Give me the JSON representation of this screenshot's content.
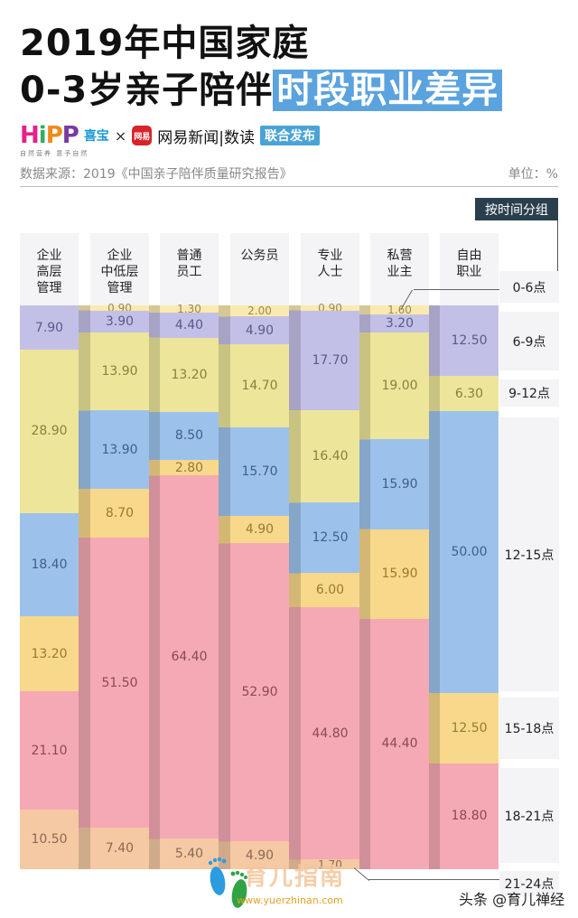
{
  "header": {
    "title_line1": "2019年中国家庭",
    "title_line2_prefix": "0-3岁亲子陪伴",
    "title_line2_highlight": "时段职业差异",
    "logo_hipp": [
      "H",
      "i",
      "P",
      "P"
    ],
    "logo_hipp_cn": "喜宝",
    "logo_hipp_slogan": "自然营养  意予自然",
    "times_symbol": "×",
    "logo_netease_mark": "网易",
    "logo_netease_text": "网易新闻|数读",
    "publish_badge": "联合发布",
    "source": "数据来源：2019《中国亲子陪伴质量研究报告》",
    "unit": "单位：%",
    "group_tag": "按时间分组"
  },
  "colors": {
    "0-6": "#fbeab0",
    "6-9": "#c3c0e8",
    "9-12": "#ede59a",
    "12-15": "#9cc2ec",
    "15-18": "#f8d88a",
    "18-21": "#f5a9b4",
    "21-24": "#f5c9a3",
    "head_bg": "#f4f3f6",
    "highlight": "#5ba3de"
  },
  "chart_data": {
    "type": "bar",
    "stacked": true,
    "orientation": "vertical",
    "title": "2019年中国家庭0-3岁亲子陪伴时段职业差异",
    "subtitle": "数据来源：2019《中国亲子陪伴质量研究报告》",
    "unit": "%",
    "categories": [
      "企业高层管理",
      "企业中低层管理",
      "普通员工",
      "公务员",
      "专业人士",
      "私营业主",
      "自由职业"
    ],
    "category_labels": [
      "企业\n高层\n管理",
      "企业\n中低层\n管理",
      "普通\n员工",
      "公务员",
      "专业\n人士",
      "私营\n业主",
      "自由\n职业"
    ],
    "series": [
      {
        "name": "0-6点",
        "values": [
          0,
          0.9,
          1.3,
          2.0,
          0.9,
          1.6,
          0
        ]
      },
      {
        "name": "6-9点",
        "values": [
          7.9,
          3.9,
          4.4,
          4.9,
          17.7,
          3.2,
          12.5
        ]
      },
      {
        "name": "9-12点",
        "values": [
          28.9,
          13.9,
          13.2,
          14.7,
          16.4,
          19.0,
          6.3
        ]
      },
      {
        "name": "12-15点",
        "values": [
          18.4,
          13.9,
          8.5,
          15.7,
          12.5,
          15.9,
          50.0
        ]
      },
      {
        "name": "15-18点",
        "values": [
          13.2,
          8.7,
          2.8,
          4.9,
          6.0,
          15.9,
          12.5
        ]
      },
      {
        "name": "18-21点",
        "values": [
          21.1,
          51.5,
          64.4,
          52.9,
          44.8,
          44.4,
          18.8
        ]
      },
      {
        "name": "21-24点",
        "values": [
          10.5,
          7.4,
          5.4,
          4.9,
          1.7,
          0,
          0
        ]
      }
    ],
    "legend_title": "按时间分组",
    "legend_position": "right",
    "ylim": [
      0,
      100
    ],
    "grid": false
  },
  "legend": [
    {
      "label": "0-6点"
    },
    {
      "label": "6-9点"
    },
    {
      "label": "9-12点"
    },
    {
      "label": "12-15点"
    },
    {
      "label": "15-18点"
    },
    {
      "label": "18-21点"
    },
    {
      "label": "21-24点"
    }
  ],
  "footer": {
    "watermark_text": "育儿指南",
    "watermark_url": "www.yuerzhinan.com",
    "credit": "头条 @育儿禅经"
  }
}
